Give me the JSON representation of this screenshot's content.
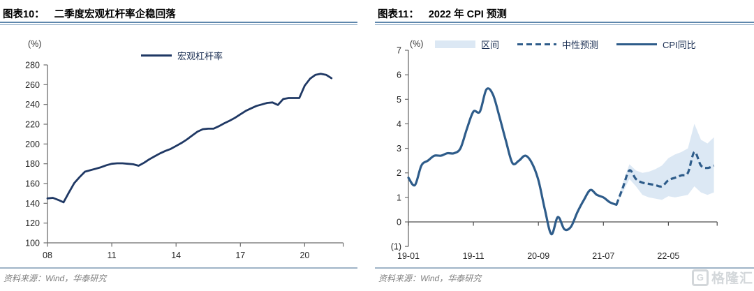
{
  "page": {
    "source_text": "资料来源：Wind，华泰研究",
    "logo": {
      "text": "格隆汇",
      "icon_letter": "G"
    },
    "colors": {
      "leverage_line": "#1f3864",
      "cpi_line": "#2e5c8a",
      "band_fill": "#dce8f4",
      "title_rule": "#5e86ac",
      "footer_rule": "#9fb4c7",
      "source_gray": "#7f7f7f"
    }
  },
  "chart_data": [
    {
      "type": "line",
      "figure_label": "图表10：",
      "title": "二季度宏观杠杆率企稳回落",
      "unit_label": "(%)",
      "grid": false,
      "legend_position": "top-center",
      "ylim": [
        100,
        280
      ],
      "yticks": [
        {
          "v": 280,
          "label": "280"
        },
        {
          "v": 260,
          "label": "260"
        },
        {
          "v": 240,
          "label": "240"
        },
        {
          "v": 220,
          "label": "220"
        },
        {
          "v": 200,
          "label": "200"
        },
        {
          "v": 180,
          "label": "180"
        },
        {
          "v": 160,
          "label": "160"
        },
        {
          "v": 140,
          "label": "140"
        },
        {
          "v": 120,
          "label": "120"
        },
        {
          "v": 100,
          "label": "100"
        }
      ],
      "xticks": [
        {
          "x": 2008,
          "label": "08"
        },
        {
          "x": 2011,
          "label": "11"
        },
        {
          "x": 2014,
          "label": "14"
        },
        {
          "x": 2017,
          "label": "17"
        },
        {
          "x": 2020,
          "label": "20"
        }
      ],
      "x_start": 2008,
      "x_step_years": 0.25,
      "x_axis_end": 2021.8,
      "series": [
        {
          "name": "宏观杠杆率",
          "style": "solid",
          "color": "#1f3864",
          "frequency": "quarterly",
          "period": "2008Q1-2021Q2",
          "values": [
            145,
            145.5,
            143.5,
            141,
            151,
            160.5,
            166.5,
            172,
            173.5,
            175,
            176.5,
            178.5,
            180,
            180.5,
            180.5,
            180,
            179.5,
            178,
            181,
            184.5,
            187.5,
            190.5,
            193,
            195,
            198,
            201,
            204.5,
            208.5,
            212.5,
            215,
            215.5,
            215.5,
            218,
            221,
            223.5,
            226.5,
            230,
            233.5,
            236,
            238.5,
            240,
            241.5,
            242,
            239.5,
            245.5,
            246.5,
            246.5,
            246.5,
            259,
            266,
            270,
            271,
            270,
            266.5
          ]
        }
      ]
    },
    {
      "type": "line_with_band",
      "figure_label": "图表11：",
      "title": "2022 年 CPI 预测",
      "unit_label": "(%)",
      "grid": false,
      "legend_position": "top",
      "ylim": [
        -1,
        7
      ],
      "yticks": [
        {
          "v": 7,
          "label": "7"
        },
        {
          "v": 6,
          "label": "6"
        },
        {
          "v": 5,
          "label": "5"
        },
        {
          "v": 4,
          "label": "4"
        },
        {
          "v": 3,
          "label": "3"
        },
        {
          "v": 2,
          "label": "2"
        },
        {
          "v": 1,
          "label": "1"
        },
        {
          "v": 0,
          "label": "0"
        },
        {
          "v": -1,
          "label": "(1)"
        }
      ],
      "xticks": [
        {
          "m": 0,
          "label": "19-01"
        },
        {
          "m": 10,
          "label": "19-11"
        },
        {
          "m": 20,
          "label": "20-09"
        },
        {
          "m": 30,
          "label": "21-07"
        },
        {
          "m": 40,
          "label": "22-05"
        }
      ],
      "months_domain": [
        0,
        47.5
      ],
      "band": {
        "name": "区间",
        "color": "#dce8f4",
        "start_month": 32,
        "upper": [
          0.7,
          1.6,
          2.35,
          2.1,
          2.0,
          2.05,
          2.15,
          2.3,
          2.6,
          2.75,
          2.85,
          3.0,
          4.0,
          3.35,
          3.2,
          3.45
        ],
        "lower": [
          0.7,
          1.2,
          1.75,
          1.45,
          1.1,
          1.0,
          0.95,
          0.9,
          1.05,
          1.0,
          1.05,
          1.1,
          1.45,
          1.2,
          1.1,
          1.2
        ]
      },
      "series": [
        {
          "name": "CPI同比",
          "style": "solid",
          "color": "#2e5c8a",
          "frequency": "monthly",
          "period": "2019-01 to 2021-09",
          "start_month": 0,
          "values": [
            1.8,
            1.5,
            2.3,
            2.5,
            2.7,
            2.7,
            2.8,
            2.8,
            3.0,
            3.8,
            4.5,
            4.5,
            5.4,
            5.2,
            4.3,
            3.3,
            2.4,
            2.5,
            2.7,
            2.4,
            1.7,
            0.5,
            -0.5,
            0.2,
            -0.3,
            -0.2,
            0.4,
            0.9,
            1.3,
            1.1,
            1.0,
            0.8,
            0.7
          ]
        },
        {
          "name": "中性预测",
          "style": "dashed",
          "color": "#2e5c8a",
          "frequency": "monthly",
          "period": "2021-09 to 2022-12",
          "start_month": 32,
          "values": [
            0.7,
            1.4,
            2.1,
            1.75,
            1.6,
            1.55,
            1.5,
            1.45,
            1.7,
            1.8,
            1.9,
            2.0,
            2.85,
            2.3,
            2.2,
            2.3
          ]
        }
      ]
    }
  ]
}
